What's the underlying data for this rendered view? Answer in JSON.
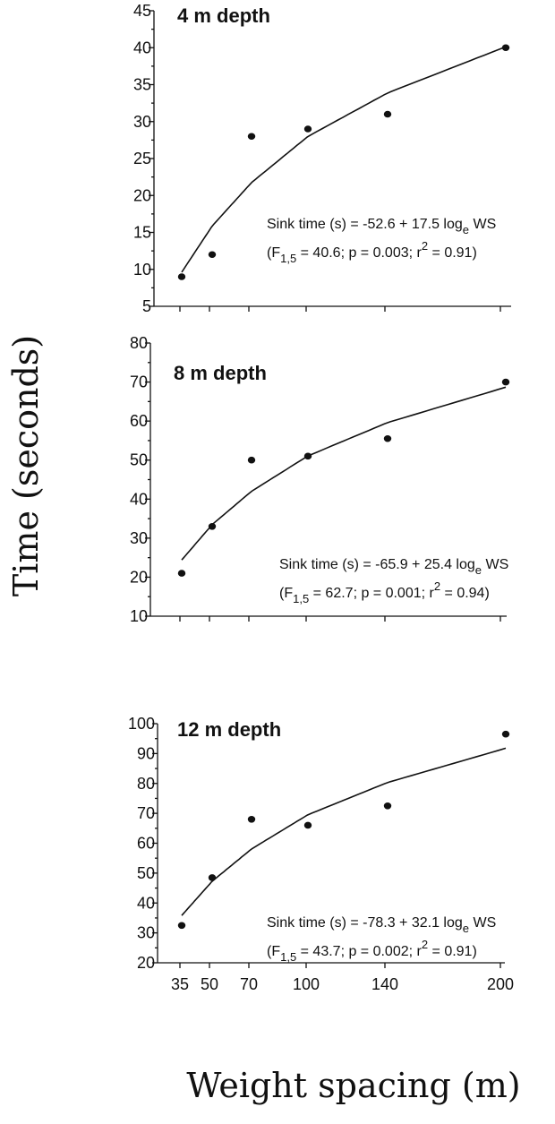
{
  "figure": {
    "ylabel": "Time (seconds)",
    "xlabel": "Weight spacing (m)",
    "x_ticks": [
      "35",
      "50",
      "70",
      "100",
      "140",
      "200"
    ]
  },
  "chart_data": [
    {
      "type": "scatter",
      "title": "4 m depth",
      "x": [
        35,
        50,
        70,
        100,
        140,
        200
      ],
      "y": [
        9,
        12,
        28,
        29,
        31,
        40
      ],
      "ylim": [
        5,
        45
      ],
      "yticks": [
        5,
        10,
        15,
        20,
        25,
        30,
        35,
        40,
        45
      ],
      "fit": {
        "intercept": -52.6,
        "slope": 17.5
      },
      "annotation": {
        "line1": "Sink time (s) = -52.6 + 17.5 log",
        "line1_sub": "e",
        "line1_tail": " WS",
        "line2_a": "(F",
        "line2_sub": "1,5",
        "line2_b": " = 40.6; p = 0.003; r",
        "line2_sup": "2",
        "line2_c": " = 0.91)"
      }
    },
    {
      "type": "scatter",
      "title": "8 m depth",
      "x": [
        35,
        50,
        70,
        100,
        140,
        200
      ],
      "y": [
        21,
        33,
        50,
        51,
        55.5,
        70
      ],
      "ylim": [
        10,
        80
      ],
      "yticks": [
        10,
        20,
        30,
        40,
        50,
        60,
        70,
        80
      ],
      "fit": {
        "intercept": -65.9,
        "slope": 25.4
      },
      "annotation": {
        "line1": "Sink time (s) = -65.9 + 25.4 log",
        "line1_sub": "e",
        "line1_tail": " WS",
        "line2_a": "(F",
        "line2_sub": "1,5",
        "line2_b": " = 62.7; p = 0.001; r",
        "line2_sup": "2",
        "line2_c": " = 0.94)"
      }
    },
    {
      "type": "scatter",
      "title": "12 m depth",
      "x": [
        35,
        50,
        70,
        100,
        140,
        200
      ],
      "y": [
        32.5,
        48.5,
        68,
        66,
        72.5,
        96.5
      ],
      "ylim": [
        20,
        100
      ],
      "yticks": [
        20,
        30,
        40,
        50,
        60,
        70,
        80,
        90,
        100
      ],
      "fit": {
        "intercept": -78.3,
        "slope": 32.1
      },
      "annotation": {
        "line1": "Sink time (s) = -78.3 + 32.1 log",
        "line1_sub": "e",
        "line1_tail": " WS",
        "line2_a": "(F",
        "line2_sub": "1,5",
        "line2_b": " = 43.7; p = 0.002; r",
        "line2_sup": "2",
        "line2_c": " = 0.91)"
      }
    }
  ]
}
